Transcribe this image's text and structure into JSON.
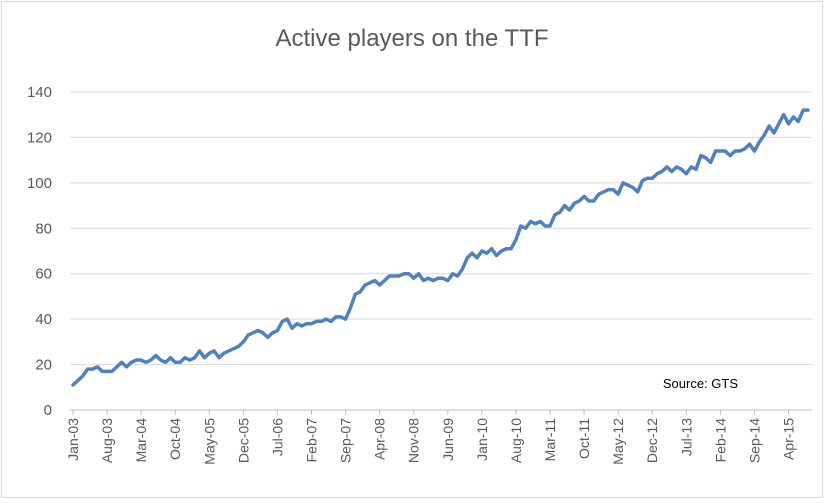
{
  "chart_data": {
    "type": "line",
    "title": "Active players on the TTF",
    "annotation": "Source: GTS",
    "categories": [
      "Jan-03",
      null,
      null,
      null,
      null,
      null,
      null,
      "Aug-03",
      null,
      null,
      null,
      null,
      null,
      null,
      "Mar-04",
      null,
      null,
      null,
      null,
      null,
      null,
      "Oct-04",
      null,
      null,
      null,
      null,
      null,
      null,
      "May-05",
      null,
      null,
      null,
      null,
      null,
      null,
      "Dec-05",
      null,
      null,
      null,
      null,
      null,
      null,
      "Jul-06",
      null,
      null,
      null,
      null,
      null,
      null,
      "Feb-07",
      null,
      null,
      null,
      null,
      null,
      null,
      "Sep-07",
      null,
      null,
      null,
      null,
      null,
      null,
      "Apr-08",
      null,
      null,
      null,
      null,
      null,
      null,
      "Nov-08",
      null,
      null,
      null,
      null,
      null,
      null,
      "Jun-09",
      null,
      null,
      null,
      null,
      null,
      null,
      "Jan-10",
      null,
      null,
      null,
      null,
      null,
      null,
      "Aug-10",
      null,
      null,
      null,
      null,
      null,
      null,
      "Mar-11",
      null,
      null,
      null,
      null,
      null,
      null,
      "Oct-11",
      null,
      null,
      null,
      null,
      null,
      null,
      "May-12",
      null,
      null,
      null,
      null,
      null,
      null,
      "Dec-12",
      null,
      null,
      null,
      null,
      null,
      null,
      "Jul-13",
      null,
      null,
      null,
      null,
      null,
      null,
      "Feb-14",
      null,
      null,
      null,
      null,
      null,
      null,
      "Sep-14",
      null,
      null,
      null,
      null,
      null,
      null,
      "Apr-15",
      null,
      null,
      null,
      null
    ],
    "values": [
      11,
      13,
      15,
      18,
      18,
      19,
      17,
      17,
      17,
      19,
      21,
      19,
      21,
      22,
      22,
      21,
      22,
      24,
      22,
      21,
      23,
      21,
      21,
      23,
      22,
      23,
      26,
      23,
      25,
      26,
      23,
      25,
      26,
      27,
      28,
      30,
      33,
      34,
      35,
      34,
      32,
      34,
      35,
      39,
      40,
      36,
      38,
      37,
      38,
      38,
      39,
      39,
      40,
      39,
      41,
      41,
      40,
      45,
      51,
      52,
      55,
      56,
      57,
      55,
      57,
      59,
      59,
      59,
      60,
      60,
      58,
      60,
      57,
      58,
      57,
      58,
      58,
      57,
      60,
      59,
      62,
      67,
      69,
      67,
      70,
      69,
      71,
      68,
      70,
      71,
      71,
      75,
      81,
      80,
      83,
      82,
      83,
      81,
      81,
      86,
      87,
      90,
      88,
      91,
      92,
      94,
      92,
      92,
      95,
      96,
      97,
      97,
      95,
      100,
      99,
      98,
      96,
      101,
      102,
      102,
      104,
      105,
      107,
      105,
      107,
      106,
      104,
      107,
      106,
      112,
      111,
      109,
      114,
      114,
      114,
      112,
      114,
      114,
      115,
      117,
      114,
      118,
      121,
      125,
      122,
      126,
      130,
      126,
      129,
      127,
      132,
      132
    ],
    "color": "#4f81bd",
    "ylim": [
      0,
      140
    ],
    "yticks": [
      0,
      20,
      40,
      60,
      80,
      100,
      120,
      140
    ],
    "grid": true
  }
}
